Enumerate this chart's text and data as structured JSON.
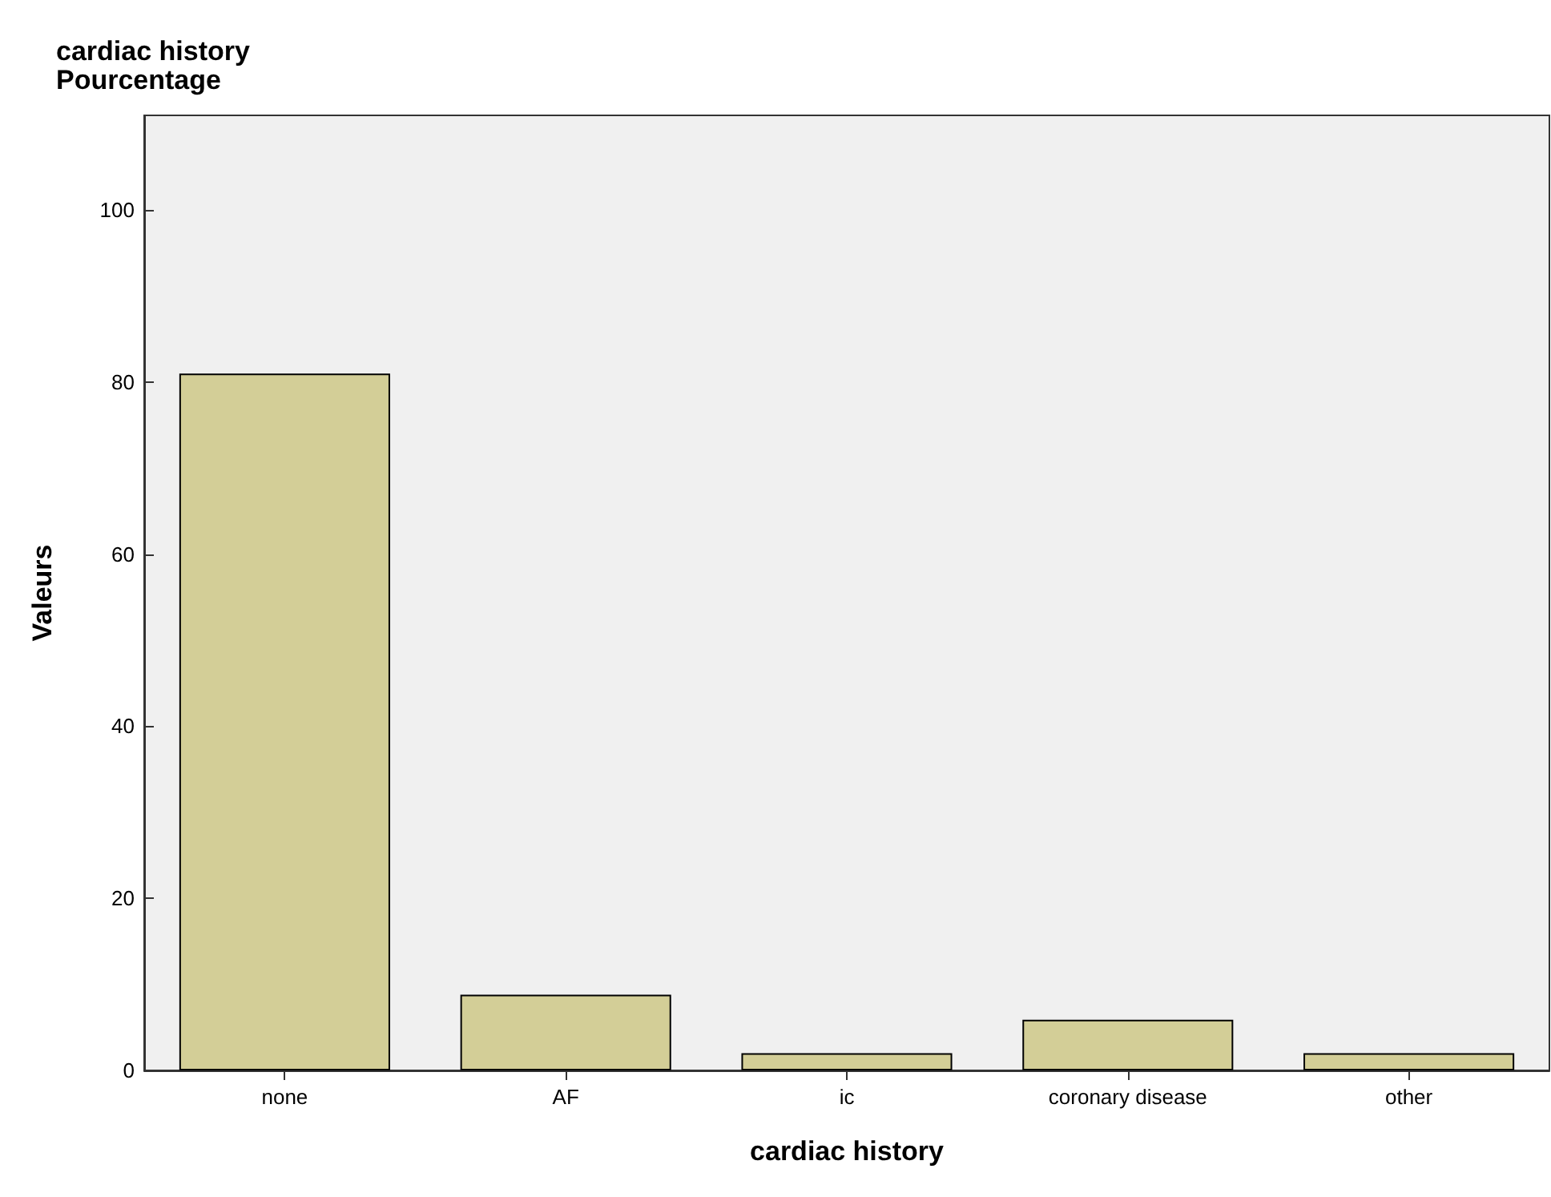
{
  "chart_data": {
    "type": "bar",
    "title": "cardiac history",
    "subtitle": "Pourcentage",
    "xlabel": "cardiac history",
    "ylabel": "Valeurs",
    "categories": [
      "none",
      "AF",
      "ic",
      "coronary disease",
      "other"
    ],
    "values": [
      81.0,
      8.8,
      2.0,
      5.9,
      2.0
    ],
    "color": "#d3ce97",
    "ylim": [
      0,
      111
    ],
    "yticks": [
      0,
      20,
      40,
      60,
      80,
      100
    ],
    "grid": false
  }
}
